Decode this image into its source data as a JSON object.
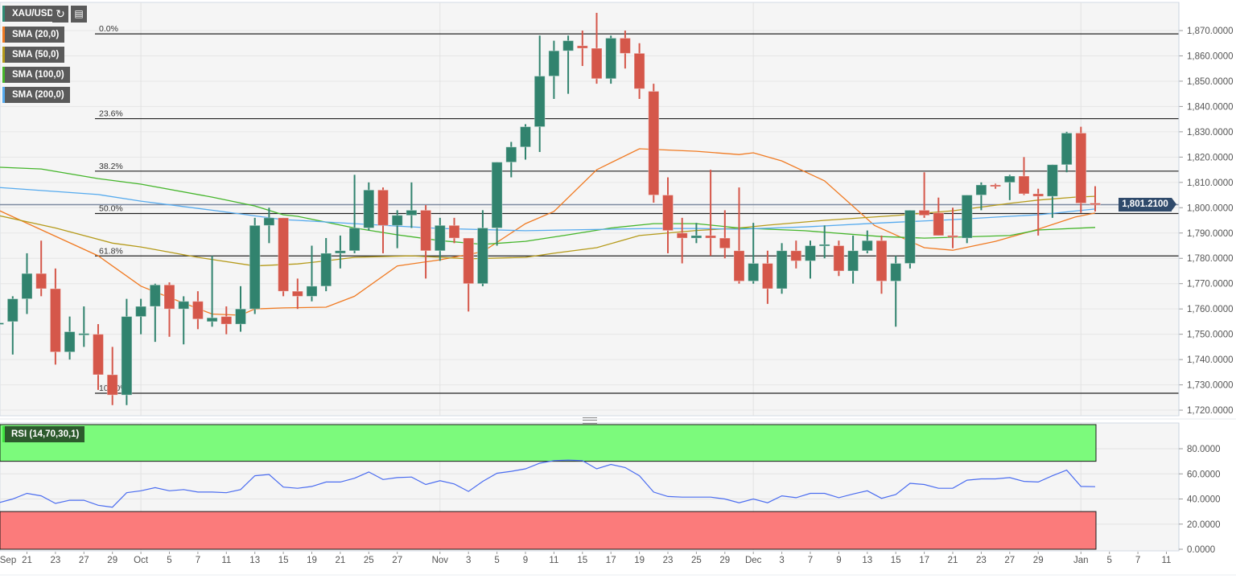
{
  "header": {
    "symbol": "XAU/USD",
    "refresh_icon": "refresh-icon",
    "chart_type_icon": "bar-chart-icon"
  },
  "indicators": [
    {
      "label": "SMA (20,0)",
      "color": "#f07a22"
    },
    {
      "label": "SMA (50,0)",
      "color": "#b59a1a"
    },
    {
      "label": "SMA (100,0)",
      "color": "#44b52a"
    },
    {
      "label": "SMA (200,0)",
      "color": "#55aaee"
    }
  ],
  "rsi_label": "RSI (14,70,30,1)",
  "current_price": "1,801.2100",
  "colors": {
    "up": "#31836e",
    "down": "#d5574a",
    "overbought": "#7cfa7c",
    "oversold": "#fb7b7b",
    "rsi_line": "#4a6cf0"
  },
  "chart_data": [
    {
      "type": "candlestick",
      "title": "XAU/USD",
      "ylim": [
        1720,
        1870
      ],
      "current_price": 1801.21,
      "y_tick_labels": [
        "1,870.0000",
        "1,860.0000",
        "1,850.0000",
        "1,840.0000",
        "1,830.0000",
        "1,820.0000",
        "1,810.0000",
        "1,800.0000",
        "1,790.0000",
        "1,780.0000",
        "1,770.0000",
        "1,760.0000",
        "1,750.0000",
        "1,740.0000",
        "1,730.0000",
        "1,720.0000"
      ],
      "x_ticks": [
        {
          "i": 1,
          "label": "Sep"
        },
        {
          "i": 3,
          "label": "21"
        },
        {
          "i": 5,
          "label": "23"
        },
        {
          "i": 7,
          "label": "27"
        },
        {
          "i": 9,
          "label": "29"
        },
        {
          "i": 11,
          "label": "Oct"
        },
        {
          "i": 13,
          "label": "5"
        },
        {
          "i": 15,
          "label": "7"
        },
        {
          "i": 17,
          "label": "11"
        },
        {
          "i": 19,
          "label": "13"
        },
        {
          "i": 21,
          "label": "15"
        },
        {
          "i": 23,
          "label": "19"
        },
        {
          "i": 25,
          "label": "21"
        },
        {
          "i": 27,
          "label": "25"
        },
        {
          "i": 29,
          "label": "27"
        },
        {
          "i": 32,
          "label": "Nov"
        },
        {
          "i": 34,
          "label": "3"
        },
        {
          "i": 36,
          "label": "5"
        },
        {
          "i": 38,
          "label": "9"
        },
        {
          "i": 40,
          "label": "11"
        },
        {
          "i": 42,
          "label": "15"
        },
        {
          "i": 44,
          "label": "17"
        },
        {
          "i": 46,
          "label": "19"
        },
        {
          "i": 48,
          "label": "23"
        },
        {
          "i": 50,
          "label": "25"
        },
        {
          "i": 52,
          "label": "29"
        },
        {
          "i": 54,
          "label": "Dec"
        },
        {
          "i": 56,
          "label": "3"
        },
        {
          "i": 58,
          "label": "7"
        },
        {
          "i": 60,
          "label": "9"
        },
        {
          "i": 62,
          "label": "13"
        },
        {
          "i": 64,
          "label": "15"
        },
        {
          "i": 66,
          "label": "17"
        },
        {
          "i": 68,
          "label": "21"
        },
        {
          "i": 70,
          "label": "23"
        },
        {
          "i": 72,
          "label": "27"
        },
        {
          "i": 74,
          "label": "29"
        },
        {
          "i": 77,
          "label": "Jan"
        },
        {
          "i": 79,
          "label": "5"
        },
        {
          "i": 81,
          "label": "7"
        },
        {
          "i": 83,
          "label": "11"
        }
      ],
      "ohlc": [
        [
          1754,
          1755,
          1753,
          1754.5
        ],
        [
          1755,
          1765,
          1742,
          1764
        ],
        [
          1764,
          1782,
          1758,
          1774
        ],
        [
          1774,
          1787,
          1765,
          1768
        ],
        [
          1768,
          1776,
          1738,
          1743
        ],
        [
          1743,
          1757,
          1740,
          1751
        ],
        [
          1750,
          1761,
          1745,
          1750.3
        ],
        [
          1750,
          1754,
          1728,
          1734
        ],
        [
          1734,
          1745,
          1722,
          1726
        ],
        [
          1726,
          1764,
          1722,
          1757
        ],
        [
          1757,
          1764,
          1750,
          1761
        ],
        [
          1761,
          1770,
          1747,
          1769.5
        ],
        [
          1769.5,
          1770.5,
          1749,
          1760
        ],
        [
          1760,
          1765,
          1746,
          1763
        ],
        [
          1763,
          1767,
          1752,
          1756
        ],
        [
          1755,
          1781,
          1753,
          1756.5
        ],
        [
          1757,
          1761,
          1750,
          1754
        ],
        [
          1754,
          1769,
          1751,
          1760
        ],
        [
          1760,
          1796,
          1758,
          1793
        ],
        [
          1793,
          1800,
          1786,
          1796
        ],
        [
          1796,
          1796,
          1765,
          1767
        ],
        [
          1767,
          1772,
          1760,
          1765
        ],
        [
          1765,
          1785,
          1763,
          1769
        ],
        [
          1769,
          1788,
          1767,
          1782
        ],
        [
          1782,
          1789,
          1776,
          1783
        ],
        [
          1783,
          1813,
          1782,
          1792
        ],
        [
          1792,
          1810,
          1791,
          1807
        ],
        [
          1807,
          1808,
          1782,
          1793
        ],
        [
          1793,
          1799,
          1784,
          1797
        ],
        [
          1797,
          1810,
          1792,
          1799
        ],
        [
          1799,
          1801,
          1772,
          1783
        ],
        [
          1783,
          1796,
          1779,
          1793
        ],
        [
          1793,
          1796,
          1786,
          1788
        ],
        [
          1788,
          1788,
          1759,
          1770
        ],
        [
          1770,
          1799,
          1769,
          1792
        ],
        [
          1792,
          1818,
          1785,
          1818
        ],
        [
          1818,
          1826,
          1812,
          1824
        ],
        [
          1824,
          1833,
          1819,
          1832
        ],
        [
          1832,
          1868,
          1822,
          1852
        ],
        [
          1852,
          1866,
          1843,
          1862
        ],
        [
          1862,
          1868,
          1845,
          1866
        ],
        [
          1864,
          1870,
          1856,
          1863
        ],
        [
          1863,
          1877,
          1849,
          1851
        ],
        [
          1851,
          1868,
          1849,
          1867
        ],
        [
          1867,
          1870,
          1855,
          1861
        ],
        [
          1861,
          1865,
          1843,
          1847
        ],
        [
          1846,
          1849,
          1802,
          1805
        ],
        [
          1805,
          1812,
          1782,
          1791
        ],
        [
          1790,
          1796,
          1778,
          1788
        ],
        [
          1788,
          1794,
          1786,
          1789
        ],
        [
          1789,
          1815,
          1781,
          1788
        ],
        [
          1788,
          1799,
          1780,
          1784
        ],
        [
          1783,
          1808,
          1770,
          1771
        ],
        [
          1771,
          1794,
          1770,
          1778
        ],
        [
          1778,
          1783,
          1762,
          1768
        ],
        [
          1768,
          1786,
          1766,
          1783
        ],
        [
          1783,
          1787,
          1776,
          1779
        ],
        [
          1779,
          1787,
          1772,
          1785
        ],
        [
          1785,
          1793,
          1780,
          1785.5
        ],
        [
          1785,
          1787,
          1773,
          1775
        ],
        [
          1775,
          1789,
          1770,
          1783
        ],
        [
          1783,
          1791,
          1782,
          1787
        ],
        [
          1787,
          1789,
          1766,
          1771
        ],
        [
          1771,
          1781,
          1753,
          1778
        ],
        [
          1778,
          1799,
          1776,
          1799
        ],
        [
          1799,
          1814,
          1796,
          1797
        ],
        [
          1798,
          1804,
          1789,
          1789
        ],
        [
          1789,
          1800,
          1784,
          1788.5
        ],
        [
          1788,
          1805,
          1786,
          1805
        ],
        [
          1805,
          1810,
          1799,
          1809
        ],
        [
          1809,
          1809.5,
          1807.5,
          1808.5
        ],
        [
          1810,
          1813,
          1803,
          1812.5
        ],
        [
          1812.5,
          1820,
          1805,
          1805.5
        ],
        [
          1805.5,
          1807.5,
          1789,
          1804.5
        ],
        [
          1804.5,
          1817,
          1796,
          1817
        ],
        [
          1817,
          1830,
          1814,
          1829.5
        ],
        [
          1829.5,
          1832,
          1798,
          1801.8
        ],
        [
          1801.8,
          1808.5,
          1798.5,
          1801.21
        ]
      ],
      "sma": [
        {
          "name": "SMA (20,0)",
          "color": "#f07a22",
          "points": [
            [
              1,
              1799
            ],
            [
              8,
              1781
            ],
            [
              9,
              1777
            ],
            [
              11,
              1769
            ],
            [
              13,
              1764.5
            ],
            [
              16,
              1758
            ],
            [
              18,
              1757.5
            ],
            [
              19,
              1760
            ],
            [
              21,
              1760.4
            ],
            [
              24,
              1760.7
            ],
            [
              26,
              1765
            ],
            [
              29,
              1777
            ],
            [
              32,
              1779.4
            ],
            [
              35,
              1782.6
            ],
            [
              38,
              1793.7
            ],
            [
              40,
              1798.5
            ],
            [
              43,
              1815
            ],
            [
              46,
              1823.3
            ],
            [
              50,
              1822.3
            ],
            [
              53,
              1821
            ],
            [
              54,
              1821.7
            ],
            [
              56,
              1818.5
            ],
            [
              59,
              1810.6
            ],
            [
              62.5,
              1793
            ],
            [
              66,
              1784.2
            ],
            [
              68,
              1783.2
            ],
            [
              71,
              1786.7
            ],
            [
              74,
              1791.5
            ],
            [
              76.6,
              1796.3
            ],
            [
              78,
              1797.9
            ]
          ]
        },
        {
          "name": "SMA (50,0)",
          "color": "#b59a1a",
          "points": [
            [
              1,
              1796.9
            ],
            [
              5,
              1792
            ],
            [
              9,
              1786
            ],
            [
              11,
              1784.5
            ],
            [
              15,
              1780.4
            ],
            [
              19,
              1777
            ],
            [
              22,
              1777.8
            ],
            [
              24,
              1779
            ],
            [
              26,
              1780.4
            ],
            [
              30,
              1781
            ],
            [
              34,
              1779.8
            ],
            [
              38,
              1780.4
            ],
            [
              40,
              1782
            ],
            [
              43,
              1784.2
            ],
            [
              46,
              1789
            ],
            [
              50,
              1791
            ],
            [
              53,
              1792
            ],
            [
              55,
              1793.1
            ],
            [
              59,
              1795
            ],
            [
              64,
              1796.9
            ],
            [
              68,
              1798.8
            ],
            [
              72,
              1801.7
            ],
            [
              74,
              1803
            ],
            [
              76.6,
              1804.2
            ],
            [
              78,
              1804.5
            ]
          ]
        },
        {
          "name": "SMA (100,0)",
          "color": "#44b52a",
          "points": [
            [
              1,
              1816
            ],
            [
              4,
              1815.3
            ],
            [
              8,
              1811.5
            ],
            [
              11,
              1809.3
            ],
            [
              16,
              1804.2
            ],
            [
              19,
              1800.7
            ],
            [
              21,
              1797.2
            ],
            [
              22,
              1796.6
            ],
            [
              26,
              1792
            ],
            [
              29,
              1789.3
            ],
            [
              32,
              1787
            ],
            [
              35,
              1785.5
            ],
            [
              38,
              1786.7
            ],
            [
              41,
              1789.3
            ],
            [
              44,
              1792
            ],
            [
              47,
              1793.7
            ],
            [
              50,
              1793.7
            ],
            [
              53,
              1792
            ],
            [
              57.6,
              1790.9
            ],
            [
              63,
              1788.6
            ],
            [
              66,
              1788
            ],
            [
              72,
              1789
            ],
            [
              74,
              1791.2
            ],
            [
              78,
              1792.2
            ]
          ]
        },
        {
          "name": "SMA (200,0)",
          "color": "#55aaee",
          "points": [
            [
              1,
              1808
            ],
            [
              8,
              1805.2
            ],
            [
              11,
              1802.6
            ],
            [
              16,
              1799
            ],
            [
              21,
              1795.3
            ],
            [
              22,
              1795
            ],
            [
              26,
              1793.7
            ],
            [
              32,
              1791.8
            ],
            [
              38,
              1790.9
            ],
            [
              44,
              1791.5
            ],
            [
              47,
              1791.8
            ],
            [
              50,
              1791.8
            ],
            [
              53,
              1791.5
            ],
            [
              57.6,
              1792.4
            ],
            [
              63,
              1794
            ],
            [
              68,
              1795.3
            ],
            [
              72,
              1796.6
            ],
            [
              74,
              1797.2
            ],
            [
              78,
              1799.5
            ]
          ]
        }
      ],
      "fibonacci": {
        "high": 1868.7,
        "low": 1726.7,
        "levels": [
          {
            "ratio": 0.0,
            "label": "0.0%"
          },
          {
            "ratio": 0.236,
            "label": "23.6%"
          },
          {
            "ratio": 0.382,
            "label": "38.2%"
          },
          {
            "ratio": 0.5,
            "label": "50.0%"
          },
          {
            "ratio": 0.618,
            "label": "61.8%"
          },
          {
            "ratio": 1.0,
            "label": "100.0%"
          }
        ]
      }
    },
    {
      "type": "line",
      "title": "RSI (14,70,30,1)",
      "ylim": [
        0,
        100
      ],
      "overbought": 70,
      "oversold": 30,
      "y_tick_labels": [
        "80.0000",
        "60.0000",
        "40.0000",
        "20.0000",
        "0.0000"
      ],
      "values": [
        37,
        40,
        44.5,
        42.5,
        36.5,
        39,
        39,
        35,
        33.5,
        45,
        46.5,
        49,
        46.5,
        47.5,
        45.5,
        45.5,
        45,
        47.5,
        58.5,
        59.5,
        49.5,
        48.5,
        50,
        53.5,
        53.5,
        56.5,
        61.5,
        55.5,
        57,
        57.5,
        51.5,
        54.5,
        52,
        46,
        54,
        60.5,
        62,
        64,
        68.5,
        70.5,
        71,
        70.5,
        64,
        67.5,
        65,
        58.5,
        45.5,
        42,
        41.5,
        41.5,
        41.5,
        40,
        37,
        40,
        37,
        42.5,
        41,
        44.5,
        44.5,
        41,
        44,
        46.5,
        40.5,
        43.5,
        52.5,
        51.5,
        48.5,
        48.5,
        55,
        56,
        56,
        57,
        54,
        53.5,
        58.5,
        63,
        50,
        49.8
      ]
    }
  ]
}
